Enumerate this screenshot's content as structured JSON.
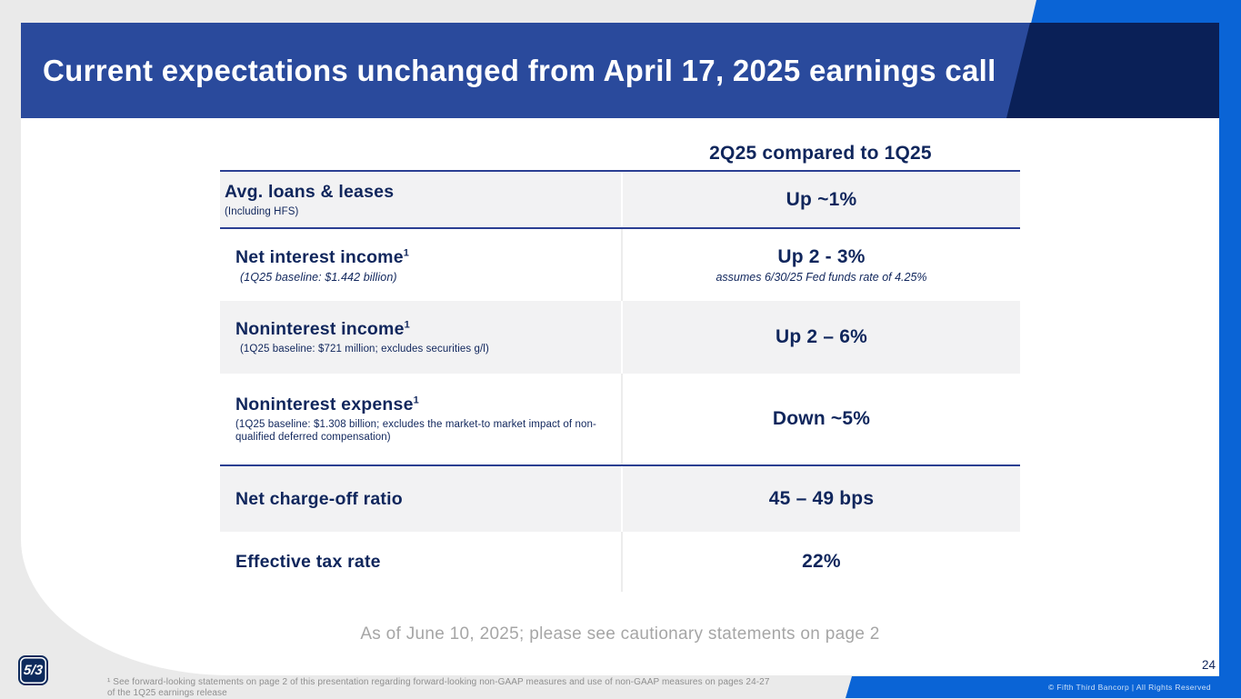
{
  "banner": {
    "title": "Current expectations unchanged from April 17, 2025 earnings call"
  },
  "table": {
    "column_header": "2Q25 compared to 1Q25",
    "rows": [
      {
        "label": "Avg. loans & leases",
        "sup": "",
        "sublabel": "(Including HFS)",
        "value": "Up ~1%",
        "value_note": ""
      },
      {
        "label": "Net interest income",
        "sup": "1",
        "sublabel": "(1Q25 baseline: $1.442 billion)",
        "value": "Up 2 - 3%",
        "value_note": "assumes 6/30/25 Fed funds rate of 4.25%"
      },
      {
        "label": "Noninterest income",
        "sup": "1",
        "sublabel": "(1Q25 baseline: $721 million; excludes securities g/l)",
        "value": "Up 2 – 6%",
        "value_note": ""
      },
      {
        "label": "Noninterest expense",
        "sup": "1",
        "sublabel": "(1Q25 baseline: $1.308 billion; excludes the market-to market impact of non-qualified deferred compensation)",
        "value": "Down ~5%",
        "value_note": ""
      },
      {
        "label": "Net charge-off ratio",
        "sup": "",
        "sublabel": "",
        "value": "45 – 49 bps",
        "value_note": ""
      },
      {
        "label": "Effective tax rate",
        "sup": "",
        "sublabel": "",
        "value": "22%",
        "value_note": ""
      }
    ]
  },
  "caption": "As of June 10, 2025; please see cautionary statements on page 2",
  "footnote": {
    "line1": "¹ See forward-looking statements on page 2 of this presentation regarding forward-looking non-GAAP measures and use of non-GAAP measures on pages 24-27",
    "line2": "of the 1Q25 earnings release"
  },
  "footer": {
    "copyright": "© Fifth Third Bancorp | All Rights Reserved",
    "page_number": "24"
  },
  "logo": {
    "text": "5/3"
  },
  "colors": {
    "banner_blue": "#2a4a9c",
    "dark_navy": "#0a2057",
    "accent_blue": "#0a64d6",
    "text_navy": "#10265c",
    "row_gray": "#f2f2f3",
    "rule_navy": "#2b3f92"
  }
}
